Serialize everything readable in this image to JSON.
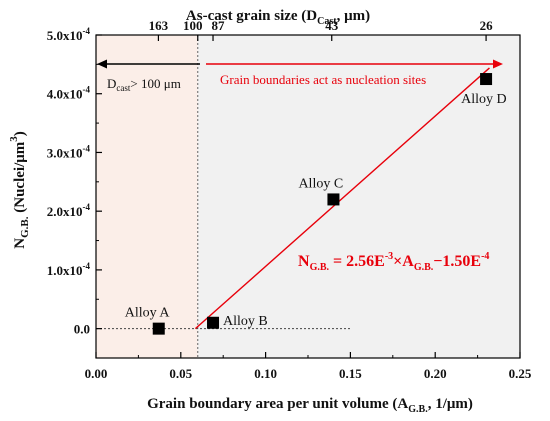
{
  "chart_data": {
    "type": "scatter",
    "xlabel_main": "Grain boundary area per unit volume (A",
    "xlabel_sub": "G.B.",
    "xlabel_tail": ", 1/μm)",
    "ylabel_main": "N",
    "ylabel_sub": "G.B.",
    "ylabel_tail": " (Nuclei/μm",
    "ylabel_sup": "3",
    "ylabel_close": ")",
    "top_label_main": "As-cast grain size (D",
    "top_label_sub": "Cast",
    "top_label_tail": ", μm)",
    "xlim": [
      0.0,
      0.25
    ],
    "ylim": [
      -5e-05,
      0.0005
    ],
    "x_ticks": [
      {
        "value": 0.0,
        "label": "0.00"
      },
      {
        "value": 0.05,
        "label": "0.05"
      },
      {
        "value": 0.1,
        "label": "0.10"
      },
      {
        "value": 0.15,
        "label": "0.15"
      },
      {
        "value": 0.2,
        "label": "0.20"
      },
      {
        "value": 0.25,
        "label": "0.25"
      }
    ],
    "y_ticks": [
      {
        "value": 0.0,
        "mant": "0.0",
        "exp": ""
      },
      {
        "value": 0.0001,
        "mant": "1.0x10",
        "exp": "-4"
      },
      {
        "value": 0.0002,
        "mant": "2.0x10",
        "exp": "-4"
      },
      {
        "value": 0.0003,
        "mant": "3.0x10",
        "exp": "-4"
      },
      {
        "value": 0.0004,
        "mant": "4.0x10",
        "exp": "-4"
      },
      {
        "value": 0.0005,
        "mant": "5.0x10",
        "exp": "-4"
      }
    ],
    "top_ticks": [
      {
        "position": 0.0368,
        "label": "163"
      },
      {
        "position": 0.06,
        "label": "100"
      },
      {
        "position": 0.069,
        "label": "87"
      },
      {
        "position": 0.139,
        "label": "43"
      },
      {
        "position": 0.23,
        "label": "26"
      }
    ],
    "points": [
      {
        "name": "Alloy A",
        "x": 0.037,
        "y": 0.0
      },
      {
        "name": "Alloy B",
        "x": 0.069,
        "y": 1e-05
      },
      {
        "name": "Alloy C",
        "x": 0.14,
        "y": 0.00022
      },
      {
        "name": "Alloy D",
        "x": 0.23,
        "y": 0.000425
      }
    ],
    "fit_line": {
      "x_start": 0.0586,
      "x_end": 0.232,
      "slope": 0.00256,
      "intercept": -0.00015
    },
    "baseline": {
      "y": 0.0,
      "x_start": 0.0,
      "x_end": 0.15
    },
    "threshold_x": 0.06,
    "shaded_left_color": "#fbeee8",
    "shaded_right_color": "#f1f1f1",
    "accent_color": "#e8000b",
    "equation": {
      "n": "N",
      "n_sub": "G.B.",
      "eq1": " = 2.56E",
      "sup1": "-3",
      "times": "×A",
      "a_sub": "G.B.",
      "minus": "−1.50E",
      "sup2": "-4"
    },
    "annotation_left": {
      "d": "D",
      "d_sub": "cast",
      "rest": "> 100 μm"
    },
    "annotation_right": "Grain boundaries act as nucleation sites"
  }
}
